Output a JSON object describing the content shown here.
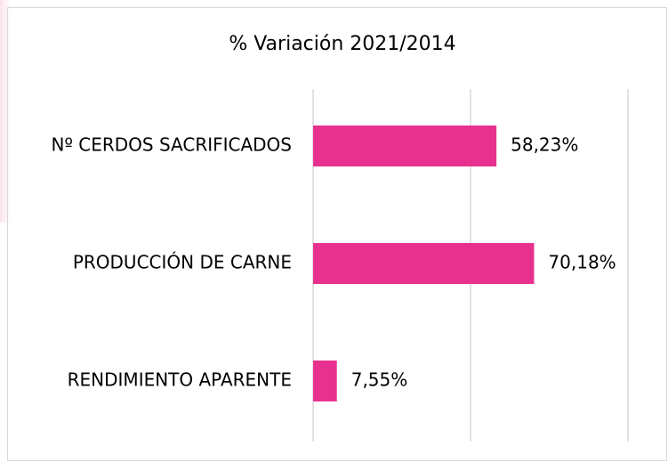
{
  "chart_data": {
    "type": "barh",
    "title": "% Variación 2021/2014",
    "categories": [
      "Nº CERDOS SACRIFICADOS",
      "PRODUCCIÓN DE CARNE",
      "RENDIMIENTO APARENTE"
    ],
    "values": [
      58.23,
      70.18,
      7.55
    ],
    "value_labels": [
      "58,23%",
      "70,18%",
      "7,55%"
    ],
    "color": "#e8318f",
    "xlim": [
      0,
      100
    ],
    "xticks": [
      0,
      50,
      100
    ],
    "grid": true
  }
}
